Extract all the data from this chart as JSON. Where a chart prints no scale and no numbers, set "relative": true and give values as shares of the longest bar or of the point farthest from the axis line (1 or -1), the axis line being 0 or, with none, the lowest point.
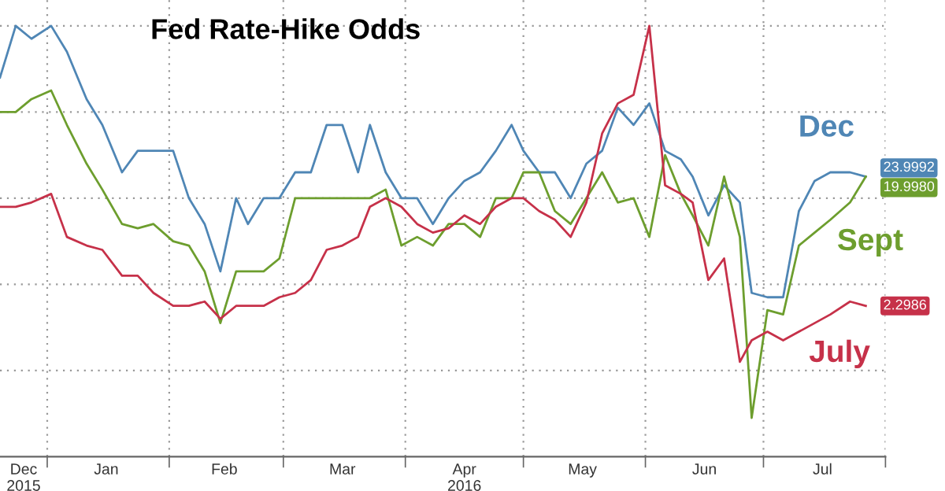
{
  "chart_data": {
    "type": "line",
    "title": "Fed Rate-Hike Odds",
    "relative": true,
    "grid": true,
    "legend": "right",
    "marker": "none",
    "line_style": "solid",
    "xlim": [
      "2015-12-20",
      "2016-08-01"
    ],
    "xticks": [
      {
        "value": "2015-12-26",
        "label": "Dec\n2015"
      },
      {
        "value": "2016-01-01",
        "label": null
      },
      {
        "value": "2016-01-16",
        "label": "Jan"
      },
      {
        "value": "2016-02-01",
        "label": null
      },
      {
        "value": "2016-02-15",
        "label": "Feb"
      },
      {
        "value": "2016-03-01",
        "label": null
      },
      {
        "value": "2016-03-16",
        "label": "Mar"
      },
      {
        "value": "2016-04-01",
        "label": null
      },
      {
        "value": "2016-04-16",
        "label": "Apr\n2016"
      },
      {
        "value": "2016-05-01",
        "label": null
      },
      {
        "value": "2016-05-16",
        "label": "May"
      },
      {
        "value": "2016-06-01",
        "label": null
      },
      {
        "value": "2016-06-16",
        "label": "Jun"
      },
      {
        "value": "2016-07-01",
        "label": null
      },
      {
        "value": "2016-07-16",
        "label": "Jul"
      },
      {
        "value": "2016-08-01",
        "label": null
      }
    ],
    "x": [
      "2015-12-20",
      "2015-12-24",
      "2015-12-28",
      "2016-01-02",
      "2016-01-06",
      "2016-01-11",
      "2016-01-15",
      "2016-01-20",
      "2016-01-24",
      "2016-01-28",
      "2016-02-02",
      "2016-02-06",
      "2016-02-10",
      "2016-02-14",
      "2016-02-18",
      "2016-02-21",
      "2016-02-25",
      "2016-02-29",
      "2016-03-04",
      "2016-03-08",
      "2016-03-12",
      "2016-03-16",
      "2016-03-20",
      "2016-03-23",
      "2016-03-27",
      "2016-03-31",
      "2016-04-04",
      "2016-04-08",
      "2016-04-12",
      "2016-04-16",
      "2016-04-20",
      "2016-04-24",
      "2016-04-28",
      "2016-05-01",
      "2016-05-05",
      "2016-05-09",
      "2016-05-13",
      "2016-05-17",
      "2016-05-21",
      "2016-05-25",
      "2016-05-29",
      "2016-06-02",
      "2016-06-06",
      "2016-06-10",
      "2016-06-13",
      "2016-06-17",
      "2016-06-21",
      "2016-06-25",
      "2016-06-28",
      "2016-07-02",
      "2016-07-06",
      "2016-07-10",
      "2016-07-14",
      "2016-07-18",
      "2016-07-23",
      "2016-07-27"
    ],
    "series": [
      {
        "name": "Dec",
        "color": "#4f86b5",
        "values": [
          0.88,
          1.0,
          0.97,
          1.0,
          0.94,
          0.83,
          0.77,
          0.66,
          0.71,
          0.71,
          0.71,
          0.6,
          0.54,
          0.43,
          0.6,
          0.54,
          0.6,
          0.6,
          0.66,
          0.66,
          0.77,
          0.77,
          0.66,
          0.77,
          0.66,
          0.6,
          0.6,
          0.54,
          0.6,
          0.64,
          0.66,
          0.71,
          0.77,
          0.71,
          0.66,
          0.66,
          0.6,
          0.68,
          0.71,
          0.81,
          0.77,
          0.82,
          0.71,
          0.69,
          0.65,
          0.56,
          0.63,
          0.59,
          0.38,
          0.37,
          0.37,
          0.57,
          0.64,
          0.66,
          0.66,
          0.65
        ]
      },
      {
        "name": "Sept",
        "color": "#6d9e2e",
        "values": [
          0.8,
          0.8,
          0.83,
          0.85,
          0.77,
          0.68,
          0.62,
          0.54,
          0.53,
          0.54,
          0.5,
          0.49,
          0.43,
          0.31,
          0.43,
          0.43,
          0.43,
          0.46,
          0.6,
          0.6,
          0.6,
          0.6,
          0.6,
          0.6,
          0.62,
          0.49,
          0.51,
          0.49,
          0.54,
          0.54,
          0.51,
          0.6,
          0.6,
          0.66,
          0.66,
          0.57,
          0.54,
          0.6,
          0.66,
          0.59,
          0.6,
          0.51,
          0.7,
          0.61,
          0.56,
          0.49,
          0.65,
          0.51,
          0.09,
          0.34,
          0.33,
          0.49,
          0.52,
          0.55,
          0.59,
          0.65
        ]
      },
      {
        "name": "July",
        "color": "#c63149",
        "values": [
          0.58,
          0.58,
          0.59,
          0.61,
          0.51,
          0.49,
          0.48,
          0.42,
          0.42,
          0.38,
          0.35,
          0.35,
          0.36,
          0.32,
          0.35,
          0.35,
          0.35,
          0.37,
          0.38,
          0.41,
          0.48,
          0.49,
          0.51,
          0.58,
          0.6,
          0.58,
          0.54,
          0.52,
          0.53,
          0.56,
          0.54,
          0.58,
          0.6,
          0.6,
          0.57,
          0.55,
          0.51,
          0.59,
          0.75,
          0.82,
          0.84,
          1.0,
          0.63,
          0.61,
          0.59,
          0.41,
          0.46,
          0.22,
          0.27,
          0.29,
          0.27,
          0.29,
          0.31,
          0.33,
          0.36,
          0.35
        ]
      }
    ],
    "annotations": [
      {
        "text": "23.9992",
        "x": "2016-07-27",
        "y": 0.65
      },
      {
        "text": "19.9980",
        "x": "2016-07-27",
        "y": 0.65
      },
      {
        "text": "2.2986",
        "x": "2016-07-27",
        "y": 0.35
      }
    ]
  }
}
